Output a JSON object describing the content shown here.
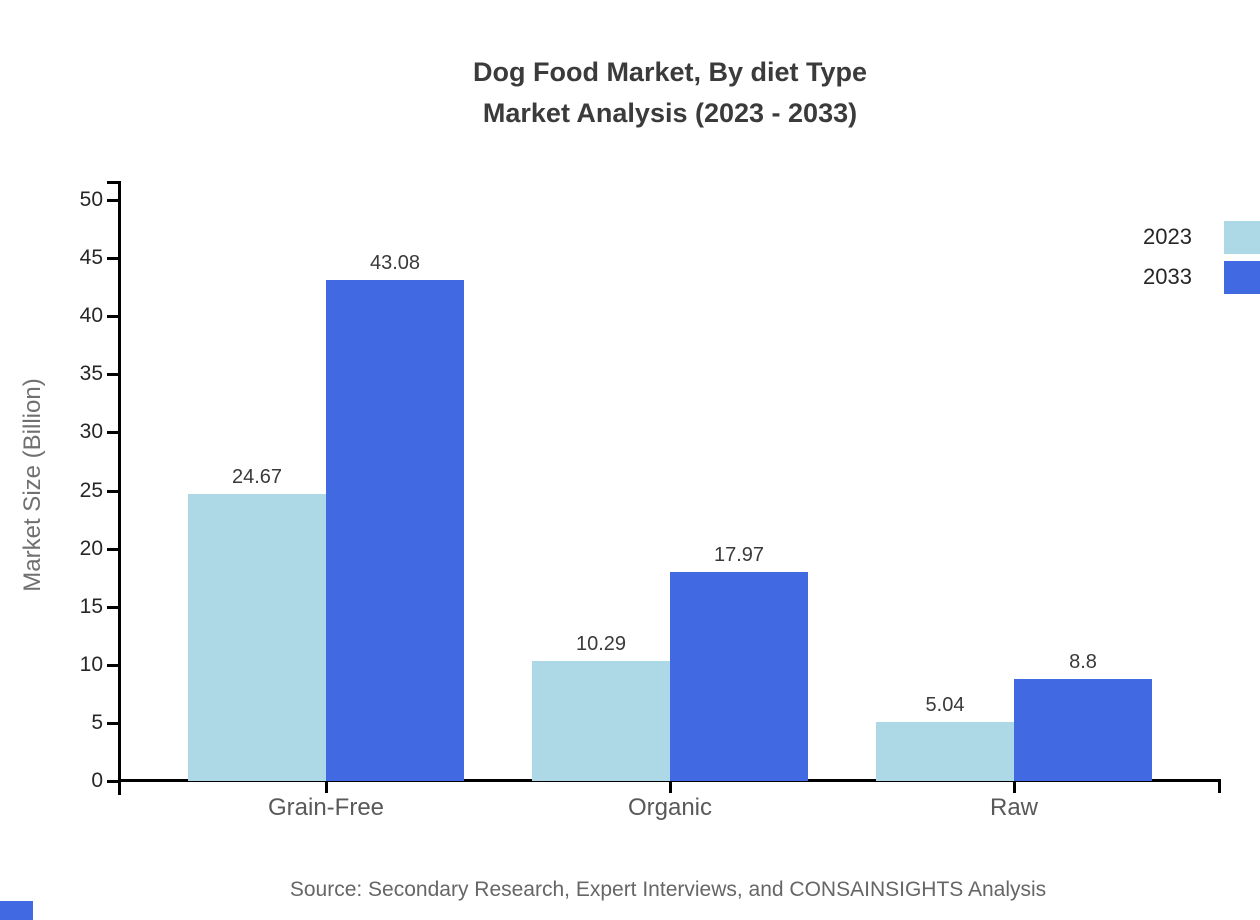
{
  "title": {
    "line1": "Dog Food Market, By diet Type",
    "line2": "Market Analysis (2023 - 2033)"
  },
  "source": "Source: Secondary Research, Expert Interviews, and CONSAINSIGHTS Analysis",
  "colors": {
    "series_2023": "#ADD8E6",
    "series_2033": "#4169E1",
    "axis": "#000000",
    "title_text": "#3b3b3b",
    "tick_text": "#262626",
    "category_text": "#595959",
    "axis_label_text": "#707070",
    "value_label_text": "#3a3a3a",
    "source_text": "#666666"
  },
  "chart_data": {
    "type": "bar",
    "title": "Dog Food Market, By diet Type Market Analysis (2023 - 2033)",
    "categories": [
      "Grain-Free",
      "Organic",
      "Raw"
    ],
    "series": [
      {
        "name": "2023",
        "color": "#ADD8E6",
        "values": [
          24.67,
          10.29,
          5.04
        ]
      },
      {
        "name": "2033",
        "color": "#4169E1",
        "values": [
          43.08,
          17.97,
          8.8
        ]
      }
    ],
    "xlabel": "",
    "ylabel": "Market Size (Billion)",
    "ylim": [
      0,
      50
    ],
    "ytick_step": 5,
    "yticks": [
      0,
      5,
      10,
      15,
      20,
      25,
      30,
      35,
      40,
      45,
      50
    ],
    "grid": false,
    "legend": {
      "position": "top-right",
      "entries": [
        "2023",
        "2033"
      ]
    },
    "value_labels_shown": true
  }
}
